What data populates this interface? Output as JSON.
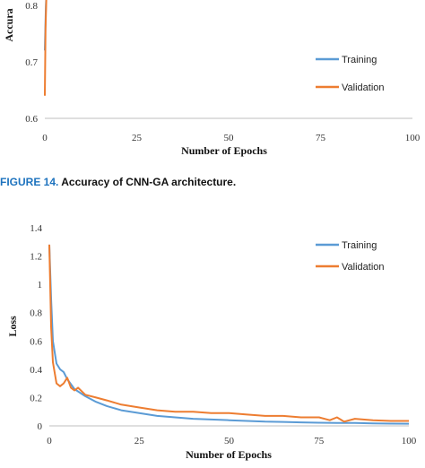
{
  "caption": {
    "label": "FIGURE 14.",
    "text": "Accuracy of CNN-GA architecture."
  },
  "chart_data": [
    {
      "type": "line",
      "ylabel": "Accura",
      "xlabel": "Number of Epochs",
      "xlim": [
        0,
        100
      ],
      "ylim": [
        0.6,
        0.86
      ],
      "yticks": [
        "0.8",
        "0.7",
        "0.6"
      ],
      "ytick_values": [
        0.8,
        0.7,
        0.6
      ],
      "xticks": [
        "0",
        "25",
        "50",
        "75",
        "100"
      ],
      "xtick_values": [
        0,
        25,
        50,
        75,
        100
      ],
      "legend": "right",
      "series": [
        {
          "name": "Training",
          "color": "#5b9bd5",
          "x": [
            0,
            0.3,
            0.6,
            1
          ],
          "y": [
            0.72,
            0.8,
            0.84,
            0.86
          ]
        },
        {
          "name": "Validation",
          "color": "#ed7d31",
          "x": [
            0,
            0.2,
            0.5,
            1
          ],
          "y": [
            0.64,
            0.76,
            0.83,
            0.86
          ]
        }
      ]
    },
    {
      "type": "line",
      "ylabel": "Loss",
      "xlabel": "Number of Epochs",
      "xlim": [
        0,
        100
      ],
      "ylim": [
        0,
        1.4
      ],
      "yticks": [
        "1.4",
        "1.2",
        "1",
        "0.8",
        "0.6",
        "0.4",
        "0.2",
        "0"
      ],
      "ytick_values": [
        1.4,
        1.2,
        1.0,
        0.8,
        0.6,
        0.4,
        0.2,
        0
      ],
      "xticks": [
        "0",
        "25",
        "50",
        "75",
        "100"
      ],
      "xtick_values": [
        0,
        25,
        50,
        75,
        100
      ],
      "legend": "top-right",
      "series": [
        {
          "name": "Training",
          "color": "#5b9bd5",
          "x": [
            0,
            0.5,
            1,
            2,
            3,
            4,
            5,
            7,
            10,
            13,
            16,
            20,
            25,
            30,
            35,
            40,
            45,
            50,
            55,
            60,
            65,
            70,
            75,
            80,
            85,
            90,
            95,
            100
          ],
          "y": [
            1.28,
            0.9,
            0.6,
            0.44,
            0.4,
            0.38,
            0.33,
            0.26,
            0.21,
            0.17,
            0.14,
            0.11,
            0.09,
            0.07,
            0.06,
            0.05,
            0.045,
            0.04,
            0.035,
            0.03,
            0.028,
            0.025,
            0.022,
            0.02,
            0.02,
            0.018,
            0.016,
            0.015
          ]
        },
        {
          "name": "Validation",
          "color": "#ed7d31",
          "x": [
            0,
            0.5,
            1,
            2,
            3,
            4,
            5,
            6,
            7,
            8,
            10,
            13,
            16,
            20,
            25,
            30,
            35,
            40,
            45,
            50,
            55,
            60,
            65,
            70,
            75,
            78,
            80,
            82,
            85,
            90,
            95,
            100
          ],
          "y": [
            1.28,
            0.7,
            0.45,
            0.3,
            0.28,
            0.3,
            0.34,
            0.27,
            0.25,
            0.27,
            0.22,
            0.2,
            0.18,
            0.15,
            0.13,
            0.11,
            0.1,
            0.1,
            0.09,
            0.09,
            0.08,
            0.07,
            0.07,
            0.06,
            0.06,
            0.04,
            0.06,
            0.03,
            0.05,
            0.04,
            0.035,
            0.035
          ]
        }
      ]
    }
  ]
}
